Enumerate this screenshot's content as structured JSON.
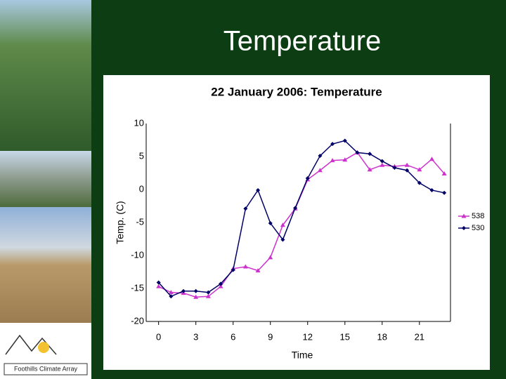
{
  "slide_title": "Temperature",
  "logo_text": "Foothills Climate Array",
  "chart_data": {
    "type": "line",
    "title": "22 January 2006: Temperature",
    "x_label": "Time",
    "y_label": "Temp. (C)",
    "x": [
      0,
      1,
      2,
      3,
      4,
      5,
      6,
      7,
      8,
      9,
      10,
      11,
      12,
      13,
      14,
      15,
      16,
      17,
      18,
      19,
      20,
      21,
      22,
      23
    ],
    "series": [
      {
        "name": "538",
        "color": "#cc33cc",
        "marker": "triangle",
        "values": [
          -14.7,
          -15.6,
          -15.7,
          -16.3,
          -16.2,
          -14.7,
          -12.0,
          -11.7,
          -12.3,
          -10.3,
          -5.4,
          -2.9,
          1.5,
          2.9,
          4.4,
          4.5,
          5.6,
          3.0,
          3.7,
          3.5,
          3.7,
          3.0,
          4.6,
          2.4
        ]
      },
      {
        "name": "530",
        "color": "#000066",
        "marker": "diamond",
        "values": [
          -14.1,
          -16.2,
          -15.4,
          -15.4,
          -15.6,
          -14.3,
          -12.2,
          -2.9,
          -0.1,
          -5.1,
          -7.6,
          -2.8,
          1.7,
          5.1,
          6.9,
          7.4,
          5.6,
          5.4,
          4.3,
          3.3,
          2.9,
          1.0,
          -0.1,
          -0.5
        ]
      }
    ],
    "xlim": [
      -1,
      23.5
    ],
    "xticks": [
      0,
      3,
      6,
      9,
      12,
      15,
      18,
      21
    ],
    "ylim": [
      -20,
      10
    ],
    "yticks": [
      10,
      5,
      0,
      -5,
      -10,
      -15,
      -20
    ],
    "grid": false,
    "legend": "right"
  }
}
